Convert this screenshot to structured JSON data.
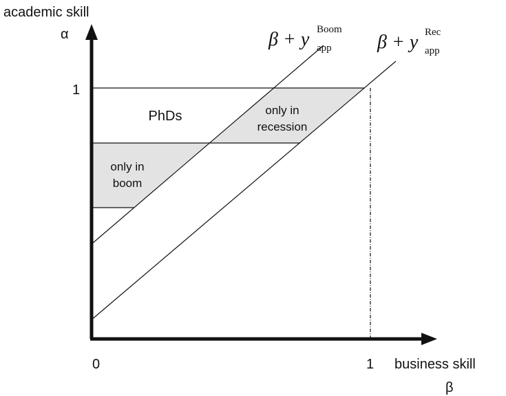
{
  "axes": {
    "y_label": "academic skill",
    "y_symbol": "α",
    "y_one": "1",
    "origin": "0",
    "x_one": "1",
    "x_label": "business skill",
    "x_symbol": "β"
  },
  "regions": {
    "phds": "PhDs",
    "recession": [
      "only in",
      "recession"
    ],
    "boom": [
      "only in",
      "boom"
    ]
  },
  "lines": {
    "boom": {
      "base": "β + y",
      "sub": "app",
      "sup": "Boom"
    },
    "rec": {
      "base": "β + y",
      "sub": "app",
      "sup": "Rec"
    }
  }
}
